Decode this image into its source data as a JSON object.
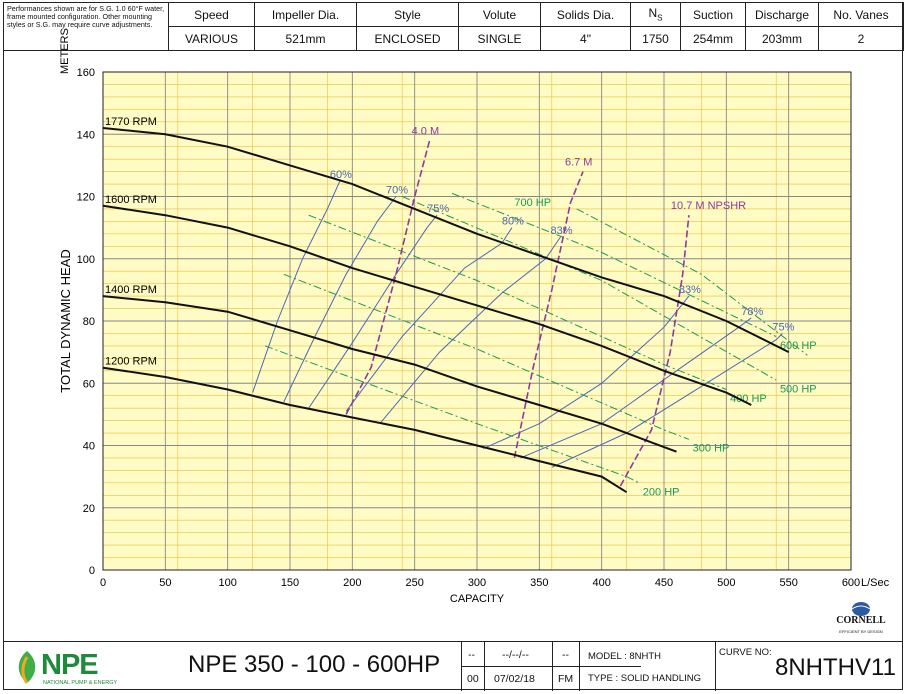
{
  "note": "Performances shown are for S.G. 1.0 60°F water, frame mounted configuration. Other mounting styles or S.G. may require curve adjustments.",
  "spec_headers": [
    "Speed",
    "Impeller Dia.",
    "Style",
    "Volute",
    "Solids Dia.",
    "NS",
    "Suction",
    "Discharge",
    "No. Vanes"
  ],
  "spec_values": [
    "VARIOUS",
    "521mm",
    "ENCLOSED",
    "SINGLE",
    "4\"",
    "1750",
    "254mm",
    "203mm",
    "2"
  ],
  "footer": {
    "logo_text": "NPE",
    "logo_sub": "NATIONAL PUMP & ENERGY",
    "model_title": "NPE 350 - 100 - 600HP",
    "rev_dash": "--",
    "rev_date_blank": "--/--/--",
    "rev_init_blank": "--",
    "rev_no": "00",
    "rev_date": "07/02/18",
    "rev_init": "FM",
    "model": "MODEL : 8NHTH",
    "type": "TYPE : SOLID HANDLING",
    "curve_no_label": "CURVE NO:",
    "curve_no": "8NHTHV11",
    "brand": "CORNELL",
    "brand_sub": "EFFICIENT BY DESIGN"
  },
  "colors": {
    "grid_bg": "#fffbc4",
    "grid_line": "#e8c13a",
    "head": "#111111",
    "efficiency": "#4a68b8",
    "npsh": "#8e3a98",
    "power": "#1a9a55"
  },
  "chart_data": {
    "type": "line",
    "xlabel": "CAPACITY",
    "x_unit": "L/Sec",
    "ylabel": "TOTAL DYNAMIC HEAD",
    "y_unit": "METERS",
    "xlim": [
      0,
      600
    ],
    "ylim": [
      0,
      160
    ],
    "x_ticks": [
      0,
      50,
      100,
      150,
      200,
      250,
      300,
      350,
      400,
      450,
      500,
      550,
      600
    ],
    "y_ticks": [
      0,
      20,
      40,
      60,
      80,
      100,
      120,
      140,
      160
    ],
    "grid": true,
    "head_curves": [
      {
        "name": "1770 RPM",
        "points": [
          [
            0,
            142
          ],
          [
            50,
            140
          ],
          [
            100,
            136
          ],
          [
            150,
            130
          ],
          [
            200,
            124
          ],
          [
            250,
            116
          ],
          [
            300,
            108
          ],
          [
            350,
            101
          ],
          [
            400,
            94
          ],
          [
            450,
            88
          ],
          [
            500,
            80
          ],
          [
            550,
            70
          ]
        ]
      },
      {
        "name": "1600 RPM",
        "points": [
          [
            0,
            117
          ],
          [
            50,
            114
          ],
          [
            100,
            110
          ],
          [
            150,
            104
          ],
          [
            200,
            97
          ],
          [
            250,
            91
          ],
          [
            300,
            85
          ],
          [
            350,
            79
          ],
          [
            400,
            72
          ],
          [
            450,
            64
          ],
          [
            500,
            57
          ],
          [
            520,
            53
          ]
        ]
      },
      {
        "name": "1400 RPM",
        "points": [
          [
            0,
            88
          ],
          [
            50,
            86
          ],
          [
            100,
            83
          ],
          [
            150,
            77
          ],
          [
            200,
            71
          ],
          [
            250,
            66
          ],
          [
            300,
            59
          ],
          [
            350,
            53
          ],
          [
            400,
            47
          ],
          [
            440,
            41
          ],
          [
            460,
            38
          ]
        ]
      },
      {
        "name": "1200 RPM",
        "points": [
          [
            0,
            65
          ],
          [
            50,
            62
          ],
          [
            100,
            58
          ],
          [
            150,
            53
          ],
          [
            200,
            49
          ],
          [
            250,
            45
          ],
          [
            300,
            40
          ],
          [
            350,
            35
          ],
          [
            400,
            30
          ],
          [
            420,
            25
          ]
        ]
      }
    ],
    "efficiency_curves": [
      {
        "label": "60%",
        "points": [
          [
            120,
            57
          ],
          [
            140,
            80
          ],
          [
            160,
            100
          ],
          [
            180,
            116
          ],
          [
            190,
            125
          ]
        ]
      },
      {
        "label": "70%",
        "points": [
          [
            145,
            54
          ],
          [
            170,
            75
          ],
          [
            195,
            95
          ],
          [
            220,
            112
          ],
          [
            235,
            120
          ]
        ]
      },
      {
        "label": "75%",
        "points": [
          [
            165,
            52
          ],
          [
            200,
            73
          ],
          [
            235,
            95
          ],
          [
            260,
            110
          ],
          [
            268,
            114
          ]
        ]
      },
      {
        "label": "80%",
        "points": [
          [
            195,
            51
          ],
          [
            240,
            75
          ],
          [
            290,
            97
          ],
          [
            320,
            105
          ],
          [
            328,
            110
          ]
        ]
      },
      {
        "label": "83%",
        "points": [
          [
            222,
            47
          ],
          [
            270,
            70
          ],
          [
            320,
            89
          ],
          [
            355,
            100
          ],
          [
            367,
            107
          ]
        ]
      },
      {
        "label": "83%",
        "points": [
          [
            305,
            39
          ],
          [
            350,
            47
          ],
          [
            400,
            60
          ],
          [
            450,
            78
          ],
          [
            470,
            88
          ]
        ]
      },
      {
        "label": "78%",
        "points": [
          [
            335,
            36
          ],
          [
            400,
            47
          ],
          [
            460,
            64
          ],
          [
            510,
            78
          ],
          [
            520,
            81
          ]
        ]
      },
      {
        "label": "75%",
        "points": [
          [
            360,
            33
          ],
          [
            420,
            44
          ],
          [
            480,
            59
          ],
          [
            540,
            74
          ],
          [
            545,
            76
          ]
        ]
      }
    ],
    "npsh_curves": [
      {
        "label": "4.0 M",
        "points": [
          [
            195,
            50
          ],
          [
            215,
            65
          ],
          [
            235,
            95
          ],
          [
            250,
            120
          ],
          [
            262,
            138
          ]
        ]
      },
      {
        "label": "6.7 M",
        "points": [
          [
            330,
            36
          ],
          [
            345,
            65
          ],
          [
            360,
            90
          ],
          [
            375,
            118
          ],
          [
            385,
            128
          ]
        ]
      },
      {
        "label": "10.7 M NPSHR",
        "points": [
          [
            415,
            27
          ],
          [
            440,
            45
          ],
          [
            455,
            70
          ],
          [
            465,
            95
          ],
          [
            470,
            114
          ]
        ]
      }
    ],
    "power_lines": [
      {
        "label": "200 HP",
        "points": [
          [
            130,
            72
          ],
          [
            300,
            47
          ],
          [
            420,
            30
          ],
          [
            430,
            28
          ]
        ]
      },
      {
        "label": "300 HP",
        "points": [
          [
            145,
            95
          ],
          [
            300,
            71
          ],
          [
            450,
            45
          ],
          [
            470,
            42
          ]
        ]
      },
      {
        "label": "400 HP",
        "points": [
          [
            165,
            114
          ],
          [
            300,
            93
          ],
          [
            450,
            66
          ],
          [
            500,
            58
          ]
        ]
      },
      {
        "label": "500 HP",
        "points": [
          [
            240,
            120
          ],
          [
            400,
            93
          ],
          [
            540,
            61
          ]
        ]
      },
      {
        "label": "600 HP",
        "points": [
          [
            280,
            121
          ],
          [
            400,
            102
          ],
          [
            540,
            75
          ]
        ]
      },
      {
        "label": "700 HP",
        "points": [
          [
            380,
            116
          ],
          [
            480,
            95
          ],
          [
            565,
            69
          ]
        ]
      }
    ]
  }
}
